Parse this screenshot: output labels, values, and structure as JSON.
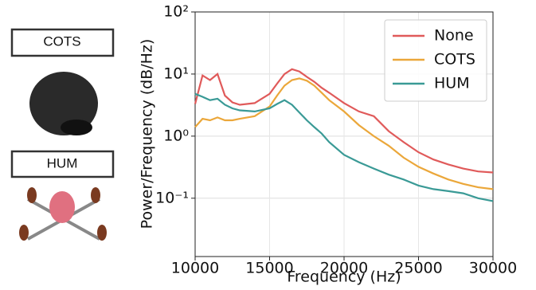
{
  "panels": [
    {
      "label": "COTS"
    },
    {
      "label": "HUM"
    }
  ],
  "chart_data": {
    "type": "line",
    "xlabel": "Frequency (Hz)",
    "ylabel": "Power/Frequency (dB/Hz)",
    "x": [
      10000,
      10500,
      11000,
      11500,
      12000,
      12500,
      13000,
      14000,
      15000,
      15500,
      16000,
      16500,
      17000,
      17500,
      18000,
      18500,
      19000,
      20000,
      21000,
      22000,
      23000,
      24000,
      25000,
      26000,
      27000,
      28000,
      29000,
      30000
    ],
    "series": [
      {
        "name": "None",
        "color": "#e05a5a",
        "values": [
          3.3,
          9.5,
          8,
          10,
          4.5,
          3.5,
          3.2,
          3.4,
          4.8,
          7,
          10,
          12,
          11,
          9,
          7.5,
          6,
          5,
          3.4,
          2.5,
          2.1,
          1.2,
          0.8,
          0.55,
          0.42,
          0.35,
          0.3,
          0.27,
          0.26
        ]
      },
      {
        "name": "COTS",
        "color": "#eba73a",
        "values": [
          1.4,
          1.9,
          1.8,
          2,
          1.8,
          1.8,
          1.9,
          2.1,
          3,
          4.5,
          6.5,
          8,
          8.5,
          7.8,
          6.5,
          5,
          3.8,
          2.5,
          1.5,
          1,
          0.7,
          0.45,
          0.32,
          0.25,
          0.2,
          0.17,
          0.15,
          0.14
        ]
      },
      {
        "name": "HUM",
        "color": "#3a9a96",
        "values": [
          4.8,
          4.3,
          3.8,
          4,
          3.2,
          2.8,
          2.6,
          2.5,
          2.8,
          3.3,
          3.8,
          3.2,
          2.4,
          1.8,
          1.4,
          1.1,
          0.8,
          0.5,
          0.38,
          0.3,
          0.24,
          0.2,
          0.16,
          0.14,
          0.13,
          0.12,
          0.1,
          0.09
        ]
      }
    ],
    "xlim": [
      10000,
      30000
    ],
    "xticks": [
      10000,
      15000,
      20000,
      25000,
      30000
    ],
    "ylim": [
      0.0115,
      100
    ],
    "yticks": [
      {
        "value": 0.1,
        "label": "10⁻¹"
      },
      {
        "value": 1,
        "label": "10⁰"
      },
      {
        "value": 10,
        "label": "10¹"
      },
      {
        "value": 100,
        "label": "10²"
      }
    ],
    "log_y": true,
    "grid": true,
    "legend": "upper right"
  }
}
